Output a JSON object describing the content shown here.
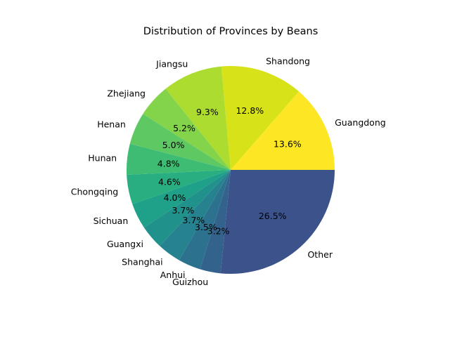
{
  "chart_data": {
    "type": "pie",
    "title": "Distribution of Provinces by Beans",
    "categories": [
      "Guangdong",
      "Shandong",
      "Jiangsu",
      "Zhejiang",
      "Henan",
      "Hunan",
      "Chongqing",
      "Sichuan",
      "Guangxi",
      "Shanghai",
      "Anhui",
      "Guizhou",
      "Other"
    ],
    "values": [
      13.6,
      12.8,
      9.3,
      5.2,
      5.0,
      4.8,
      4.6,
      4.0,
      3.7,
      3.7,
      3.5,
      3.2,
      26.5
    ],
    "value_labels": [
      "13.6%",
      "12.8%",
      "9.3%",
      "5.2%",
      "5.0%",
      "4.8%",
      "4.6%",
      "4.0%",
      "3.7%",
      "3.7%",
      "3.5%",
      "3.2%",
      "26.5%"
    ],
    "start_angle_deg": 0,
    "direction": "counterclockwise",
    "colors": [
      "#fde725",
      "#d8e219",
      "#addc30",
      "#84d44b",
      "#5ec962",
      "#3fbc73",
      "#28ae80",
      "#1fa088",
      "#21918c",
      "#26828e",
      "#2c728e",
      "#33638d",
      "#3b528b"
    ]
  }
}
